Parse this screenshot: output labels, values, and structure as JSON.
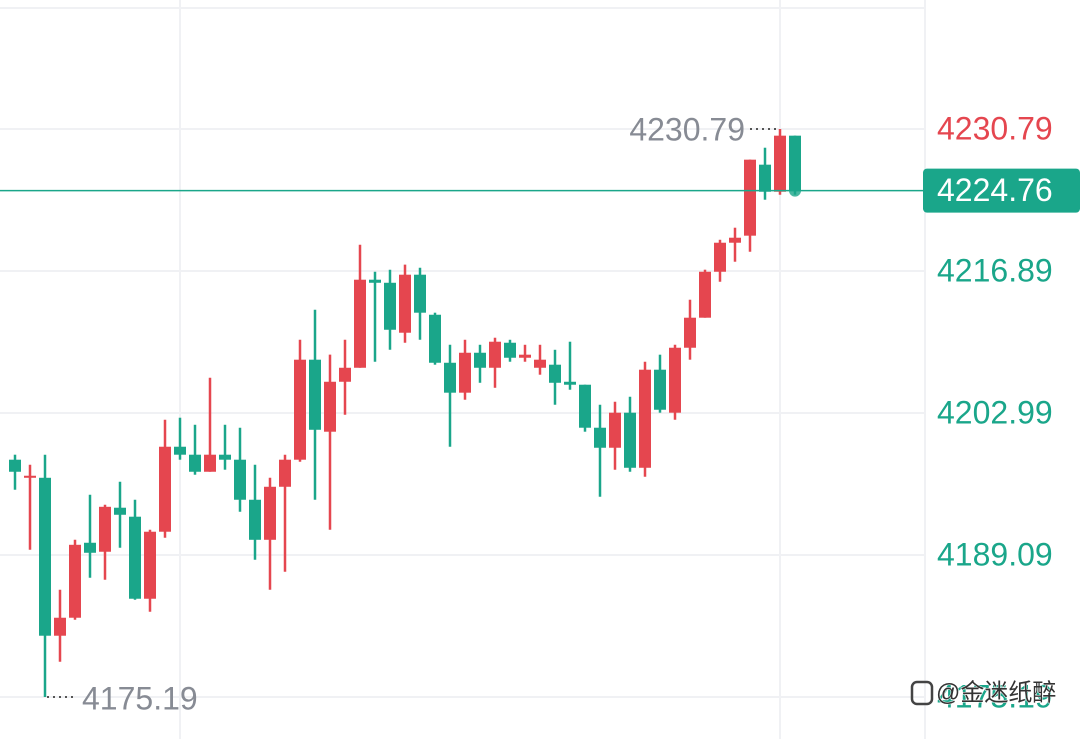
{
  "chart_data": {
    "type": "candlestick",
    "open": [
      4198.42,
      4196.65,
      4196.65,
      4181.19,
      4182.95,
      4190.29,
      4189.41,
      4193.72,
      4192.84,
      4184.81,
      4191.37,
      4199.69,
      4198.91,
      4197.24,
      4198.91,
      4198.42,
      4194.5,
      4190.58,
      4195.77,
      4198.42,
      4208.21,
      4201.16,
      4206.05,
      4207.42,
      4216.04,
      4215.74,
      4210.85,
      4216.53,
      4212.61,
      4207.91,
      4204.98,
      4208.89,
      4207.42,
      4209.87,
      4208.4,
      4207.42,
      4207.72,
      4206.05,
      4205.76,
      4201.55,
      4199.59,
      4203.02,
      4197.63,
      4207.23,
      4203.02,
      4209.38,
      4212.32,
      4216.82,
      4219.66,
      4220.35,
      4227.3,
      4224.65,
      4230.14
    ],
    "high": [
      4198.91,
      4197.93,
      4198.91,
      4185.69,
      4190.58,
      4194.99,
      4194.01,
      4196.26,
      4194.5,
      4191.56,
      4202.33,
      4202.53,
      4201.84,
      4206.44,
      4201.84,
      4201.55,
      4197.93,
      4196.65,
      4198.91,
      4210.16,
      4213.1,
      4208.7,
      4210.16,
      4219.46,
      4216.82,
      4217.02,
      4217.51,
      4217.21,
      4212.81,
      4209.67,
      4210.16,
      4209.67,
      4210.36,
      4210.16,
      4209.67,
      4209.67,
      4209.18,
      4209.97,
      4205.76,
      4203.8,
      4204.09,
      4204.58,
      4208.01,
      4208.7,
      4209.67,
      4214.08,
      4217.02,
      4219.95,
      4221.13,
      4227.79,
      4228.96,
      4230.79,
      4230.14
    ],
    "low": [
      4195.48,
      4189.6,
      4175.19,
      4178.64,
      4182.75,
      4186.86,
      4186.67,
      4189.8,
      4184.71,
      4183.54,
      4190.78,
      4198.42,
      4196.95,
      4197.24,
      4197.44,
      4193.33,
      4188.63,
      4185.69,
      4187.45,
      4198.22,
      4194.5,
      4191.56,
      4202.82,
      4207.42,
      4208.01,
      4209.18,
      4209.87,
      4210.16,
      4207.72,
      4199.69,
      4204.29,
      4205.95,
      4205.46,
      4208.01,
      4208.01,
      4206.74,
      4203.8,
      4205.27,
      4201.16,
      4194.79,
      4197.44,
      4197.24,
      4196.75,
      4203.02,
      4202.33,
      4208.21,
      4212.32,
      4215.84,
      4217.8,
      4218.78,
      4223.87,
      4224.36,
      4224.36
    ],
    "close": [
      4197.24,
      4196.85,
      4181.19,
      4182.95,
      4190.09,
      4189.31,
      4193.81,
      4193.03,
      4184.81,
      4191.37,
      4199.69,
      4198.91,
      4197.24,
      4198.91,
      4198.42,
      4194.5,
      4190.58,
      4195.77,
      4198.42,
      4208.21,
      4201.35,
      4206.05,
      4207.42,
      4216.04,
      4215.74,
      4211.14,
      4216.53,
      4212.81,
      4207.91,
      4204.98,
      4208.89,
      4207.42,
      4209.97,
      4208.4,
      4208.7,
      4208.21,
      4205.95,
      4205.76,
      4201.55,
      4199.59,
      4203.02,
      4197.63,
      4207.23,
      4203.31,
      4209.38,
      4212.32,
      4216.82,
      4219.66,
      4220.15,
      4227.79,
      4224.65,
      4230.14,
      4224.76
    ],
    "ylim": [
      4171.08,
      4243.42
    ],
    "yticks": [
      4175.19,
      4189.09,
      4202.99,
      4216.89,
      4230.79
    ],
    "grid": true,
    "up_color": "#e5464f",
    "down_color": "#1aa68a",
    "watermark": "@金迷纸醉"
  }
}
